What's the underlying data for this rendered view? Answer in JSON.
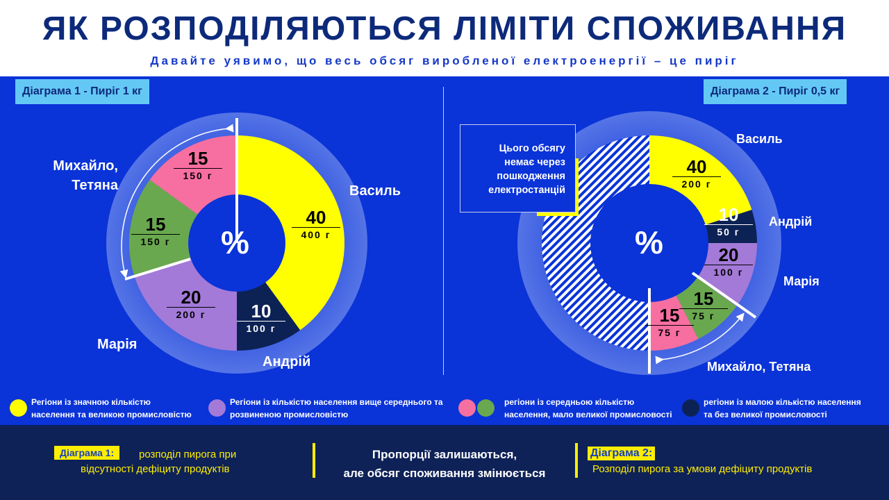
{
  "header": {
    "title": "ЯК РОЗПОДІЛЯЮТЬСЯ ЛІМІТИ СПОЖИВАННЯ",
    "subtitle": "Давайте уявимо, що весь обсяг виробленої електроенергії – це пиріг"
  },
  "colors": {
    "yellow": "#ffff00",
    "navy": "#0c2255",
    "purple": "#a37ad8",
    "green": "#6aa84f",
    "pink": "#f76fa0",
    "halo": "#3c5fe0"
  },
  "chart_data": [
    {
      "type": "pie",
      "title": "Діаграма 1 - Пиріг 1 кг",
      "center_label": "%",
      "fill_fraction": 1.0,
      "slices": [
        {
          "name": "Василь",
          "value": 40,
          "grams": "400 г",
          "color": "#ffff00"
        },
        {
          "name": "Андрій",
          "value": 10,
          "grams": "100 г",
          "color": "#0c2255"
        },
        {
          "name": "Марія",
          "value": 20,
          "grams": "200 г",
          "color": "#a37ad8"
        },
        {
          "name": "Михайло, Тетяна",
          "value": 15,
          "grams": "150 г",
          "color": "#6aa84f"
        },
        {
          "name": "Михайло, Тетяна",
          "value": 15,
          "grams": "150 г",
          "color": "#f76fa0"
        }
      ]
    },
    {
      "type": "pie",
      "title": "Діаграма 2 - Пиріг 0,5 кг",
      "center_label": "%",
      "fill_fraction": 0.5,
      "missing_note": "Цього обсягу немає через пошкодження електростанцій",
      "slices": [
        {
          "name": "Василь",
          "value": 40,
          "grams": "200 г",
          "color": "#ffff00"
        },
        {
          "name": "Андрій",
          "value": 10,
          "grams": "50 г",
          "color": "#0c2255"
        },
        {
          "name": "Марія",
          "value": 20,
          "grams": "100 г",
          "color": "#a37ad8"
        },
        {
          "name": "Михайло, Тетяна",
          "value": 15,
          "grams": "75 г",
          "color": "#6aa84f"
        },
        {
          "name": "Михайло, Тетяна",
          "value": 15,
          "grams": "75 г",
          "color": "#f76fa0"
        }
      ]
    }
  ],
  "names": {
    "vasyl": "Василь",
    "andrii": "Андрій",
    "mariia": "Марія",
    "mykhailo1": "Михайло,",
    "tetiana1": "Тетяна",
    "mt2": "Михайло, Тетяна"
  },
  "legend": [
    {
      "text1": "Регіони із значною кількістю",
      "text2": "населення та великою промисловістю"
    },
    {
      "text1": "Регіони із кількістю населення вище середнього та",
      "text2": "розвиненою промисловістю"
    },
    {
      "text1": "регіони із середньою кількістю",
      "text2": "населення, мало великої промисловості"
    },
    {
      "text1": "регіони із малою кількістю населення",
      "text2": "та без великої промисловості"
    }
  ],
  "bottom": {
    "tag1": "Діаграма 1:",
    "text1a": "розподіл пирога при",
    "text1b": "відсутності дефіциту продуктів",
    "center1": "Пропорції залишаються,",
    "center2": "але обсяг споживання змінюється",
    "tag2": "Діаграма 2:",
    "text2": "Розподіл пирога за умови дефіциту продуктів"
  }
}
